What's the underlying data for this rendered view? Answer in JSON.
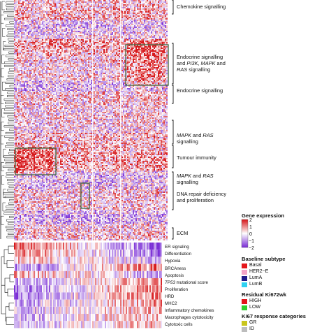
{
  "pathway_labels": [
    {
      "parts": [
        {
          "text": "Chemokine signalling",
          "italic": false
        }
      ]
    },
    {
      "parts": [
        {
          "text": "Endocrine signalling",
          "italic": false
        }
      ]
    },
    {
      "parts": [
        {
          "text": "and ",
          "italic": false
        },
        {
          "text": "PI3K",
          "italic": true
        },
        {
          "text": ", ",
          "italic": false
        },
        {
          "text": "MAPK",
          "italic": true
        },
        {
          "text": " and",
          "italic": false
        }
      ]
    },
    {
      "parts": [
        {
          "text": "RAS",
          "italic": true
        },
        {
          "text": " signalling",
          "italic": false
        }
      ]
    },
    {
      "parts": [
        {
          "text": "Endocrine signalling",
          "italic": false
        }
      ]
    },
    {
      "parts": [
        {
          "text": "MAPK",
          "italic": true
        },
        {
          "text": " and ",
          "italic": false
        },
        {
          "text": "RAS",
          "italic": true
        }
      ]
    },
    {
      "parts": [
        {
          "text": "signalling",
          "italic": false
        }
      ]
    },
    {
      "parts": [
        {
          "text": "Tumour immunity",
          "italic": false
        }
      ]
    },
    {
      "parts": [
        {
          "text": "MAPK",
          "italic": true
        },
        {
          "text": " and ",
          "italic": false
        },
        {
          "text": "RAS",
          "italic": true
        }
      ]
    },
    {
      "parts": [
        {
          "text": "signalling",
          "italic": false
        }
      ]
    },
    {
      "parts": [
        {
          "text": "DNA repair deficiency",
          "italic": false
        }
      ]
    },
    {
      "parts": [
        {
          "text": "and proliferation",
          "italic": false
        }
      ]
    },
    {
      "parts": [
        {
          "text": "ECM",
          "italic": false
        }
      ]
    }
  ],
  "score_labels": [
    {
      "parts": [
        {
          "text": "ER signaling",
          "italic": false
        }
      ]
    },
    {
      "parts": [
        {
          "text": "Differentiation",
          "italic": false
        }
      ]
    },
    {
      "parts": [
        {
          "text": "Hypoxia",
          "italic": false
        }
      ]
    },
    {
      "parts": [
        {
          "text": "BRCAness",
          "italic": false
        }
      ]
    },
    {
      "parts": [
        {
          "text": "Apoptosis",
          "italic": false
        }
      ]
    },
    {
      "parts": [
        {
          "text": "TP53",
          "italic": true
        },
        {
          "text": " mutational score",
          "italic": false
        }
      ]
    },
    {
      "parts": [
        {
          "text": "Proliferation",
          "italic": false
        }
      ]
    },
    {
      "parts": [
        {
          "text": "HRD",
          "italic": false
        }
      ]
    },
    {
      "parts": [
        {
          "text": "MHC2",
          "italic": false
        }
      ]
    },
    {
      "parts": [
        {
          "text": "Inflammatory chemokines",
          "italic": false
        }
      ]
    },
    {
      "parts": [
        {
          "text": "Macrophages cytotoxicity",
          "italic": false
        }
      ]
    },
    {
      "parts": [
        {
          "text": "Cytotoxic cells",
          "italic": false
        }
      ]
    }
  ],
  "legend": {
    "gene_expression": {
      "title": "Gene expression",
      "ticks": [
        "2",
        "1",
        "0",
        "−1",
        "−2"
      ],
      "color_high": "#d7191c",
      "color_mid": "#ffffff",
      "color_low": "#7b2fd6"
    },
    "baseline_subtype": {
      "title": "Baseline subtype",
      "items": [
        {
          "label": "Basal",
          "color": "#e4161b"
        },
        {
          "label": "HER2−E",
          "color": "#f3a3c6"
        },
        {
          "label": "LumA",
          "color": "#1f1a8a"
        },
        {
          "label": "LumB",
          "color": "#2fd2f2"
        }
      ]
    },
    "residual_ki67": {
      "title": "Residual Ki672wk",
      "items": [
        {
          "label": "HIGH",
          "color": "#e3141b"
        },
        {
          "label": "LOW",
          "color": "#2fcf2f"
        }
      ]
    },
    "ki67_response": {
      "title": "Ki67 response categories",
      "items": [
        {
          "label": "GR",
          "color": "#c9c51c"
        },
        {
          "label": "ID",
          "color": "#bdbdbd"
        }
      ]
    }
  }
}
